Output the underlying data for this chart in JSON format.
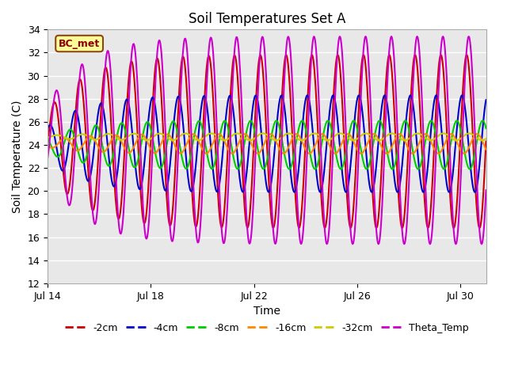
{
  "title": "Soil Temperatures Set A",
  "xlabel": "Time",
  "ylabel": "Soil Temperature (C)",
  "ylim": [
    12,
    34
  ],
  "yticks": [
    12,
    14,
    16,
    18,
    20,
    22,
    24,
    26,
    28,
    30,
    32,
    34
  ],
  "xlim_days": [
    0,
    17
  ],
  "xtick_positions": [
    0,
    4,
    8,
    12,
    16
  ],
  "xtick_labels": [
    "Jul 14",
    "Jul 18",
    "Jul 22",
    "Jul 26",
    "Jul 30"
  ],
  "annotation_text": "BC_met",
  "annotation_bg": "#FFFF99",
  "annotation_border": "#8B4513",
  "bg_color": "#E8E8E8",
  "fig_bg": "#FFFFFF",
  "series": [
    {
      "name": "-2cm",
      "color": "#CC0000",
      "amp": 7.5,
      "mean": 24.3,
      "phase": 0.0,
      "lw": 1.5
    },
    {
      "name": "-4cm",
      "color": "#0000CC",
      "amp": 4.2,
      "mean": 24.1,
      "phase": 0.18,
      "lw": 1.5
    },
    {
      "name": "-8cm",
      "color": "#00CC00",
      "amp": 2.1,
      "mean": 24.0,
      "phase": 0.38,
      "lw": 1.5
    },
    {
      "name": "-16cm",
      "color": "#FF8800",
      "amp": 0.85,
      "mean": 24.1,
      "phase": 0.6,
      "lw": 1.5
    },
    {
      "name": "-32cm",
      "color": "#CCCC00",
      "amp": 0.3,
      "mean": 24.7,
      "phase": 0.9,
      "lw": 1.5
    },
    {
      "name": "Theta_Temp",
      "color": "#CC00CC",
      "amp": 9.0,
      "mean": 24.4,
      "phase": -0.08,
      "lw": 1.5
    }
  ],
  "legend_items": [
    {
      "label": "-2cm",
      "color": "#CC0000"
    },
    {
      "label": "-4cm",
      "color": "#0000CC"
    },
    {
      "label": "-8cm",
      "color": "#00CC00"
    },
    {
      "label": "-16cm",
      "color": "#FF8800"
    },
    {
      "label": "-32cm",
      "color": "#CCCC00"
    },
    {
      "label": "Theta_Temp",
      "color": "#CC00CC"
    }
  ]
}
